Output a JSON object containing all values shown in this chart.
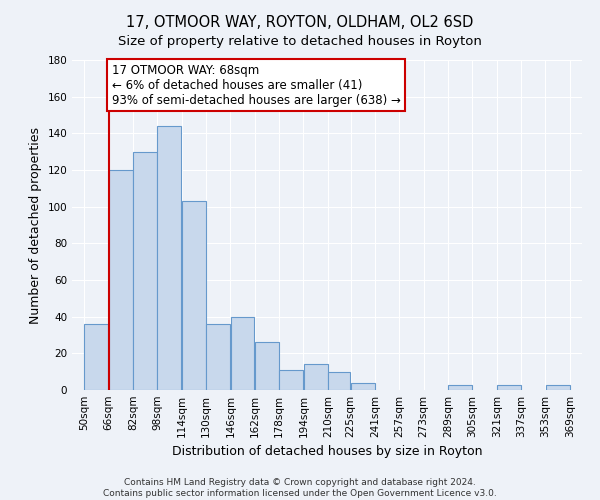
{
  "title": "17, OTMOOR WAY, ROYTON, OLDHAM, OL2 6SD",
  "subtitle": "Size of property relative to detached houses in Royton",
  "xlabel": "Distribution of detached houses by size in Royton",
  "ylabel": "Number of detached properties",
  "bar_color": "#c8d8ec",
  "bar_edge_color": "#6699cc",
  "background_color": "#eef2f8",
  "plot_bg_color": "#eef2f8",
  "grid_color": "#ffffff",
  "annotation_box_color": "#ffffff",
  "annotation_box_edge": "#cc0000",
  "vline_color": "#cc0000",
  "annotation_line1": "17 OTMOOR WAY: 68sqm",
  "annotation_line2": "← 6% of detached houses are smaller (41)",
  "annotation_line3": "93% of semi-detached houses are larger (638) →",
  "bin_edges": [
    50,
    66,
    82,
    98,
    114,
    130,
    146,
    162,
    178,
    194,
    210,
    225,
    241,
    257,
    273,
    289,
    305,
    321,
    337,
    353,
    369
  ],
  "bin_labels": [
    "50sqm",
    "66sqm",
    "82sqm",
    "98sqm",
    "114sqm",
    "130sqm",
    "146sqm",
    "162sqm",
    "178sqm",
    "194sqm",
    "210sqm",
    "225sqm",
    "241sqm",
    "257sqm",
    "273sqm",
    "289sqm",
    "305sqm",
    "321sqm",
    "337sqm",
    "353sqm",
    "369sqm"
  ],
  "counts": [
    36,
    120,
    130,
    144,
    103,
    36,
    40,
    26,
    11,
    14,
    10,
    4,
    0,
    0,
    0,
    3,
    0,
    3,
    0,
    3
  ],
  "ylim": [
    0,
    180
  ],
  "yticks": [
    0,
    20,
    40,
    60,
    80,
    100,
    120,
    140,
    160,
    180
  ],
  "vline_sqm": 66,
  "footer_line1": "Contains HM Land Registry data © Crown copyright and database right 2024.",
  "footer_line2": "Contains public sector information licensed under the Open Government Licence v3.0.",
  "title_fontsize": 10.5,
  "subtitle_fontsize": 9.5,
  "axis_label_fontsize": 9,
  "tick_fontsize": 7.5,
  "annotation_fontsize": 8.5,
  "footer_fontsize": 6.5
}
